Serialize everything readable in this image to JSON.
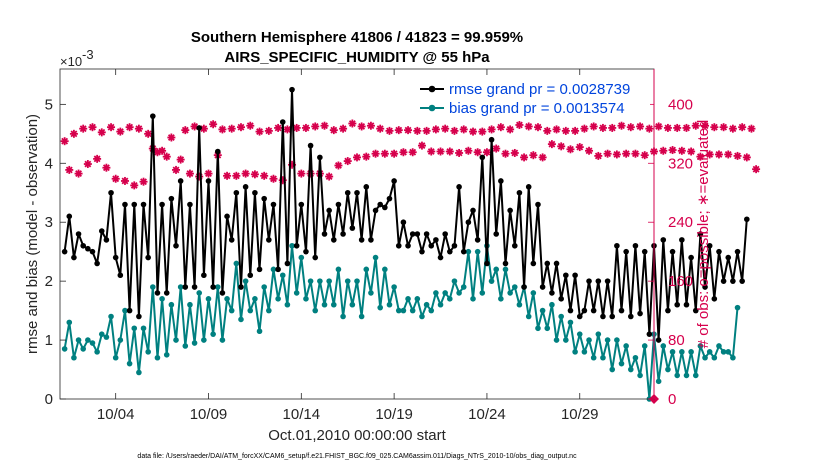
{
  "chart_data": {
    "type": "line",
    "title": "Southern Hemisphere 41806 / 41823 = 99.959%",
    "subtitle": "AIRS_SPECIFIC_HUMIDITY @ 55 hPa",
    "xlabel": "Oct.01,2010 00:00:00 start",
    "ylabel": "rmse and bias (model - observation)",
    "y2label": "# of obs: o=possible; ∗=evaluated",
    "y_exponent": "×10",
    "y_exponent_power": "-3",
    "footer": "data file: /Users/raeder/DAI/ATM_forcXX/CAM6_setup/f.e21.FHIST_BGC.f09_025.CAM6assim.011/Diags_NTrS_2010-10/obs_diag_output.nc",
    "xlim": [
      1,
      33
    ],
    "ylim": [
      0,
      5.6
    ],
    "y2lim": [
      0,
      448
    ],
    "x_ticks": [
      4,
      9,
      14,
      19,
      24,
      29
    ],
    "x_tick_labels": [
      "10/04",
      "10/09",
      "10/14",
      "10/19",
      "10/24",
      "10/29"
    ],
    "y_ticks": [
      0,
      1,
      2,
      3,
      4,
      5
    ],
    "y_tick_labels": [
      "0",
      "1",
      "2",
      "3",
      "4",
      "5"
    ],
    "y2_ticks": [
      0,
      80,
      160,
      240,
      320,
      400
    ],
    "y2_tick_labels": [
      "0",
      "80",
      "160",
      "240",
      "320",
      "400"
    ],
    "legend": [
      {
        "label": "rmse grand pr = 0.0028739",
        "color": "#000000"
      },
      {
        "label": "bias grand pr = 0.0013574",
        "color": "#008080"
      }
    ],
    "colors": {
      "rmse": "#000000",
      "bias": "#008080",
      "obs": "#d6004c",
      "axis": "#262626"
    },
    "x_start": 1.25,
    "x_step": 0.25,
    "series": [
      {
        "name": "rmse",
        "values": [
          2.5,
          3.1,
          2.4,
          2.8,
          2.6,
          2.55,
          2.5,
          2.3,
          2.85,
          2.7,
          3.5,
          2.4,
          2.1,
          3.3,
          1.5,
          3.3,
          1.4,
          3.3,
          2.4,
          4.8,
          1.8,
          3.3,
          1.8,
          3.4,
          2.6,
          3.7,
          1.9,
          3.3,
          1.9,
          4.6,
          2.1,
          3.7,
          1.9,
          4.2,
          1.8,
          3.1,
          2.7,
          3.5,
          1.9,
          3.6,
          2.1,
          3.5,
          2.2,
          3.4,
          2.7,
          3.3,
          2.2,
          4.7,
          2.3,
          5.25,
          2.6,
          3.3,
          2.5,
          4.3,
          2.4,
          4.1,
          2.8,
          3.2,
          2.7,
          3.3,
          2.8,
          3.5,
          2.9,
          3.5,
          2.7,
          3.6,
          2.7,
          3.2,
          3.3,
          3.25,
          3.4,
          3.7,
          2.6,
          3.0,
          2.6,
          2.8,
          2.8,
          2.5,
          2.8,
          2.6,
          2.7,
          2.4,
          2.8,
          2.5,
          2.6,
          3.6,
          2.5,
          3.0,
          3.2,
          2.7,
          4.1,
          2.3,
          4.4,
          2.8,
          3.7,
          2.3,
          3.2,
          2.6,
          3.5,
          1.9,
          3.6,
          2.3,
          3.3,
          1.9,
          2.3,
          1.8,
          2.3,
          1.7,
          2.1,
          1.5,
          2.1,
          1.4,
          1.5,
          2.0,
          1.5,
          2.0,
          1.4,
          2.0,
          1.4,
          2.6,
          1.5,
          2.5,
          1.4,
          2.6,
          1.45,
          2.5,
          1.1,
          2.6,
          1.0,
          2.7,
          1.5,
          2.5,
          1.6,
          2.7,
          1.6,
          2.4,
          1.5,
          2.8,
          1.9,
          2.6,
          1.7,
          2.5,
          2.0,
          2.4,
          2.0,
          2.5,
          2.0,
          3.05
        ]
      },
      {
        "name": "bias",
        "values": [
          0.85,
          1.3,
          0.7,
          1.0,
          0.85,
          1.0,
          0.95,
          0.8,
          1.1,
          1.05,
          1.4,
          0.7,
          1.0,
          1.5,
          0.6,
          1.2,
          0.45,
          1.2,
          0.8,
          1.9,
          0.7,
          1.7,
          0.75,
          1.6,
          1.0,
          1.9,
          0.9,
          1.6,
          0.95,
          1.8,
          1.0,
          1.7,
          1.1,
          1.9,
          1.0,
          1.7,
          1.5,
          2.3,
          1.35,
          2.0,
          1.5,
          1.7,
          1.15,
          1.9,
          1.5,
          2.2,
          1.7,
          2.1,
          1.6,
          2.6,
          1.8,
          2.4,
          1.7,
          2.0,
          1.5,
          2.0,
          1.6,
          2.0,
          1.6,
          2.2,
          1.4,
          2.0,
          1.6,
          2.0,
          1.4,
          2.2,
          1.8,
          2.4,
          1.55,
          2.2,
          1.6,
          1.9,
          1.5,
          1.5,
          1.7,
          1.5,
          1.7,
          1.4,
          1.6,
          1.5,
          1.8,
          1.6,
          1.8,
          1.7,
          2.0,
          1.8,
          1.9,
          2.5,
          1.7,
          2.5,
          1.8,
          2.6,
          2.0,
          2.2,
          1.7,
          2.2,
          1.8,
          1.9,
          1.6,
          1.9,
          1.4,
          1.8,
          1.2,
          1.5,
          1.2,
          1.6,
          1.0,
          1.4,
          1.0,
          1.3,
          0.8,
          1.1,
          0.8,
          1.0,
          0.7,
          1.1,
          0.7,
          1.0,
          0.5,
          1.0,
          0.6,
          0.9,
          0.5,
          0.7,
          0.4,
          0.9,
          0.0,
          1.1,
          0.3,
          0.9,
          0.5,
          0.8,
          0.4,
          0.8,
          0.4,
          0.8,
          0.4,
          0.9,
          0.7,
          0.8,
          0.7,
          0.9,
          0.8,
          0.8,
          0.7,
          1.55
        ]
      },
      {
        "name": "obs_evaluated",
        "values": [
          350,
          311,
          360,
          306,
          367,
          319,
          369,
          326,
          362,
          314,
          369,
          299,
          363,
          296,
          369,
          290,
          367,
          295,
          360,
          340,
          335,
          337,
          329,
          355,
          311,
          325,
          365,
          306,
          370,
          302,
          367,
          306,
          373,
          331,
          366,
          303,
          367,
          303,
          369,
          306,
          371,
          305,
          363,
          303,
          364,
          299,
          368,
          297,
          366,
          318,
          368,
          306,
          368,
          306,
          370,
          306,
          371,
          302,
          365,
          317,
          367,
          323,
          374,
          328,
          370,
          329,
          371,
          333,
          367,
          333,
          364,
          333,
          365,
          335,
          365,
          335,
          364,
          344,
          364,
          336,
          366,
          336,
          367,
          336,
          364,
          334,
          366,
          337,
          363,
          335,
          363,
          335,
          366,
          340,
          369,
          333,
          366,
          334,
          372,
          328,
          370,
          331,
          369,
          328,
          364,
          346,
          366,
          343,
          364,
          339,
          364,
          342,
          367,
          337,
          370,
          330,
          368,
          333,
          368,
          332,
          371,
          333,
          369,
          333,
          370,
          331,
          367,
          336,
          370,
          337,
          368,
          338,
          368,
          337,
          368,
          336,
          371,
          329,
          371,
          332,
          369,
          332,
          369,
          332,
          367,
          330,
          369,
          328,
          367,
          312
        ]
      }
    ]
  }
}
